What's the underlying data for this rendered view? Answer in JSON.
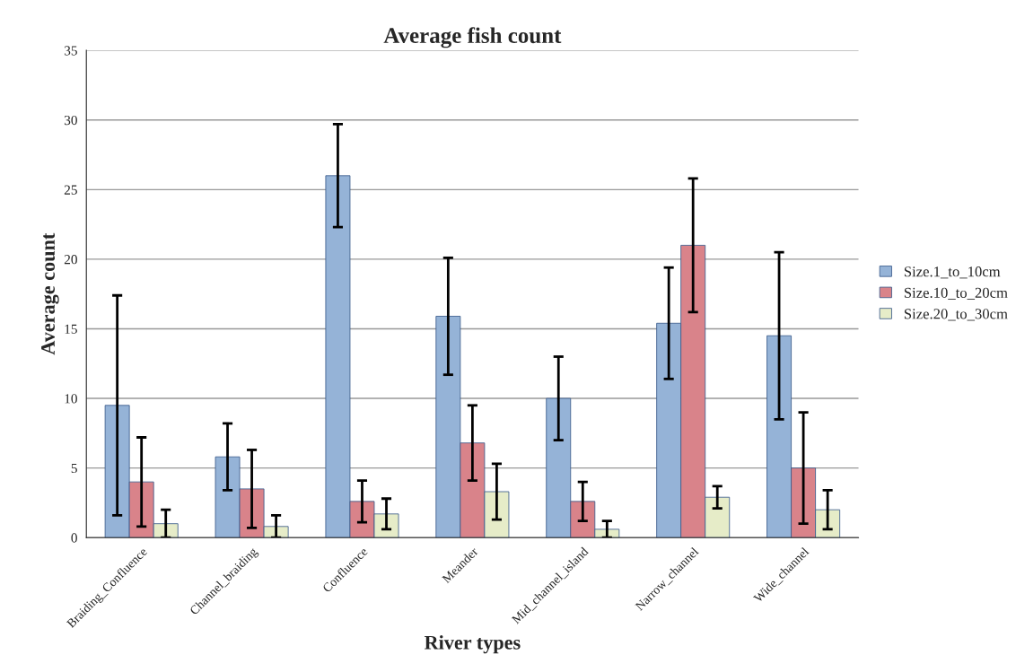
{
  "chart_data": {
    "type": "bar",
    "title": "Average fish count",
    "xlabel": "River types",
    "ylabel": "Average count",
    "categories": [
      "Braiding_Confluence",
      "Channel_braiding",
      "Confluence",
      "Meander",
      "Mid_channel_island",
      "Narrow_channel",
      "Wide_channel"
    ],
    "series": [
      {
        "name": "Size.1_to_10cm",
        "color": "#95b3d7",
        "values": [
          9.5,
          5.8,
          26,
          15.9,
          10,
          15.4,
          14.5
        ],
        "errors": [
          7.9,
          2.4,
          3.7,
          4.2,
          3,
          4,
          6
        ]
      },
      {
        "name": "Size.10_to_20cm",
        "color": "#d9838a",
        "values": [
          4,
          3.5,
          2.6,
          6.8,
          2.6,
          21,
          5
        ],
        "errors": [
          3.2,
          2.8,
          1.5,
          2.7,
          1.4,
          4.8,
          4
        ]
      },
      {
        "name": "Size.20_to_30cm",
        "color": "#e6ecc8",
        "values": [
          1,
          0.8,
          1.7,
          3.3,
          0.6,
          2.9,
          2
        ],
        "errors": [
          1,
          0.8,
          1.1,
          2,
          0.6,
          0.8,
          1.4
        ]
      }
    ],
    "ylim": [
      0,
      35
    ],
    "yticks": [
      0,
      5,
      10,
      15,
      20,
      25,
      30,
      35
    ],
    "grid": "y",
    "legend": "right"
  }
}
